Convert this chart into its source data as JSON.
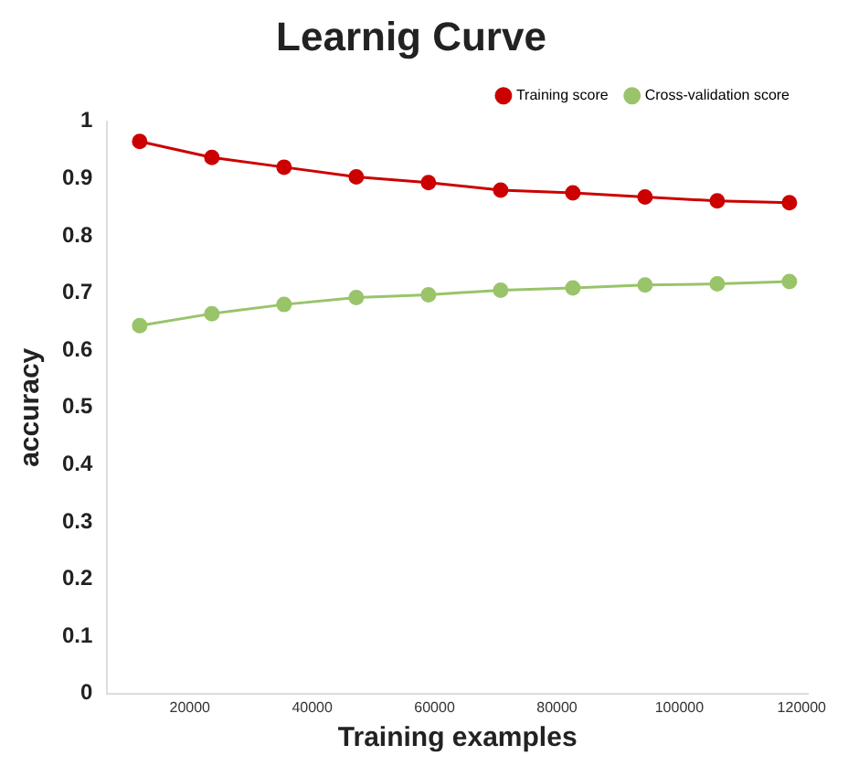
{
  "chart_data": {
    "type": "line",
    "title": "Learnig Curve",
    "xlabel": "Training examples",
    "ylabel": "accuracy",
    "x": [
      11800,
      23600,
      35400,
      47200,
      59000,
      70800,
      82600,
      94400,
      106200,
      118000
    ],
    "series": [
      {
        "name": "Training score",
        "color": "#cc0000",
        "values": [
          0.965,
          0.937,
          0.92,
          0.903,
          0.893,
          0.88,
          0.875,
          0.868,
          0.861,
          0.858
        ]
      },
      {
        "name": "Cross-validation score",
        "color": "#99c46a",
        "values": [
          0.643,
          0.664,
          0.68,
          0.692,
          0.697,
          0.705,
          0.709,
          0.714,
          0.716,
          0.72
        ]
      }
    ],
    "xlim": [
      6500,
      121000
    ],
    "xticks": [
      20000,
      40000,
      60000,
      80000,
      100000,
      120000
    ],
    "ylim": [
      0,
      1
    ],
    "yticks": [
      0,
      0.1,
      0.2,
      0.3,
      0.4,
      0.5,
      0.6,
      0.7,
      0.8,
      0.9,
      1
    ],
    "grid": false,
    "legend": "top right",
    "marker": "circle",
    "line_style": "solid"
  }
}
